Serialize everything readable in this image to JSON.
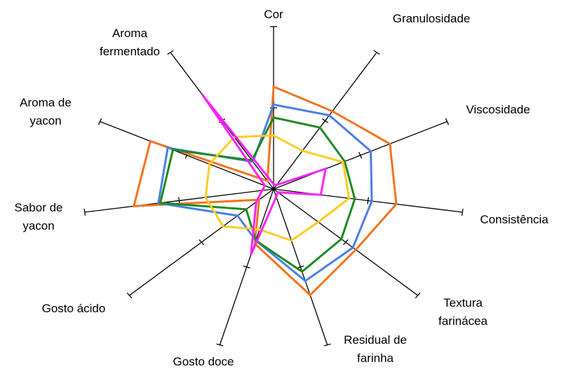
{
  "chart_data": {
    "type": "radar",
    "categories": [
      [
        "Cor"
      ],
      [
        "Granulosidade"
      ],
      [
        "Viscosidade"
      ],
      [
        "Consistência"
      ],
      [
        "Textura",
        "farinácea"
      ],
      [
        "Residual de",
        "farinha"
      ],
      [
        "Gosto doce"
      ],
      [
        "Gosto ácido"
      ],
      [
        "Sabor de",
        "yacon"
      ],
      [
        "Aroma de",
        "yacon"
      ],
      [
        "Aroma",
        "fermentado"
      ]
    ],
    "rlim": [
      0,
      10
    ],
    "rticks": [
      5,
      10
    ],
    "series": [
      {
        "color": "#f4731f",
        "values": [
          6.3,
          5.7,
          6.7,
          6.5,
          5.7,
          6.8,
          3.5,
          1.0,
          7.4,
          7.1,
          0.6
        ]
      },
      {
        "color": "#4a7ee8",
        "values": [
          5.2,
          5.4,
          5.6,
          5.2,
          5.5,
          5.9,
          3.3,
          2.5,
          6.1,
          6.1,
          2.0
        ]
      },
      {
        "color": "#1e8a1e",
        "values": [
          4.4,
          4.5,
          4.1,
          4.3,
          4.7,
          5.3,
          3.3,
          1.9,
          6.0,
          5.8,
          2.1
        ]
      },
      {
        "color": "#ffcc22",
        "values": [
          3.3,
          2.8,
          4.0,
          4.0,
          3.1,
          3.3,
          2.6,
          3.5,
          3.6,
          3.7,
          3.8
        ]
      },
      {
        "color": "#ff22ff",
        "values": [
          0.3,
          0.3,
          3.0,
          2.5,
          0.3,
          0.5,
          4.2,
          1.2,
          0.6,
          0.5,
          6.9
        ]
      }
    ]
  }
}
